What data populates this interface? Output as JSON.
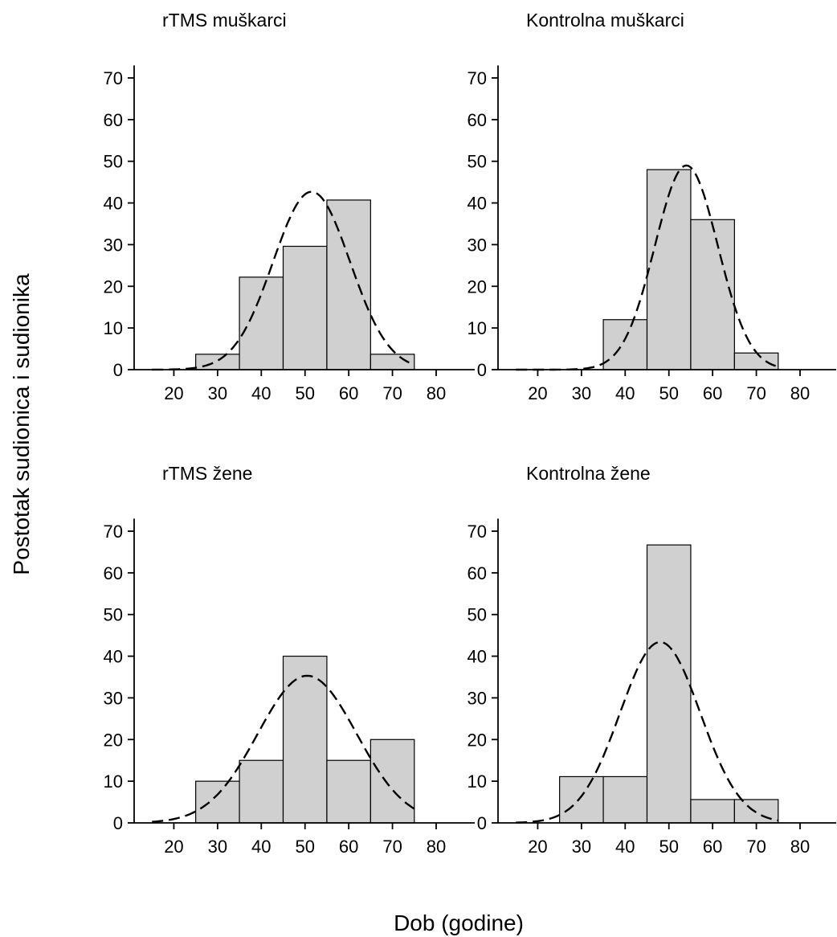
{
  "figure": {
    "ylabel": "Postotak sudionica i sudionika",
    "xlabel": "Dob (godine)"
  },
  "chart_data": [
    {
      "type": "bar",
      "title": "rTMS muškarci",
      "bin_edges": [
        25,
        35,
        45,
        55,
        65,
        75
      ],
      "values": [
        3.7,
        22.2,
        29.6,
        40.7,
        3.7
      ],
      "fit": {
        "type": "normal",
        "peak": 42.7,
        "mean": 51.5,
        "sd": 8.8
      },
      "xlim": [
        10,
        82
      ],
      "ylim": [
        0,
        73
      ],
      "xticks": [
        20,
        30,
        40,
        50,
        60,
        70,
        80
      ],
      "yticks": [
        0,
        10,
        20,
        30,
        40,
        50,
        60,
        70
      ]
    },
    {
      "type": "bar",
      "title": "Kontrolna muškarci",
      "bin_edges": [
        35,
        45,
        55,
        65,
        75
      ],
      "values": [
        12,
        48,
        36,
        4
      ],
      "fit": {
        "type": "normal",
        "peak": 49,
        "mean": 54,
        "sd": 7.2
      },
      "xlim": [
        10,
        82
      ],
      "ylim": [
        0,
        73
      ],
      "xticks": [
        20,
        30,
        40,
        50,
        60,
        70,
        80
      ],
      "yticks": [
        0,
        10,
        20,
        30,
        40,
        50,
        60,
        70
      ]
    },
    {
      "type": "bar",
      "title": "rTMS žene",
      "bin_edges": [
        25,
        35,
        45,
        55,
        65,
        75
      ],
      "values": [
        10,
        15,
        40,
        15,
        20
      ],
      "fit": {
        "type": "normal",
        "peak": 35.3,
        "mean": 50.5,
        "sd": 11.3
      },
      "xlim": [
        10,
        82
      ],
      "ylim": [
        0,
        73
      ],
      "xticks": [
        20,
        30,
        40,
        50,
        60,
        70,
        80
      ],
      "yticks": [
        0,
        10,
        20,
        30,
        40,
        50,
        60,
        70
      ]
    },
    {
      "type": "bar",
      "title": "Kontrolna žene",
      "bin_edges": [
        25,
        35,
        45,
        55,
        65,
        75
      ],
      "values": [
        11.1,
        11.1,
        66.7,
        5.6,
        5.6
      ],
      "fit": {
        "type": "normal",
        "peak": 43.4,
        "mean": 48,
        "sd": 9.2
      },
      "xlim": [
        10,
        82
      ],
      "ylim": [
        0,
        73
      ],
      "xticks": [
        20,
        30,
        40,
        50,
        60,
        70,
        80
      ],
      "yticks": [
        0,
        10,
        20,
        30,
        40,
        50,
        60,
        70
      ]
    }
  ]
}
